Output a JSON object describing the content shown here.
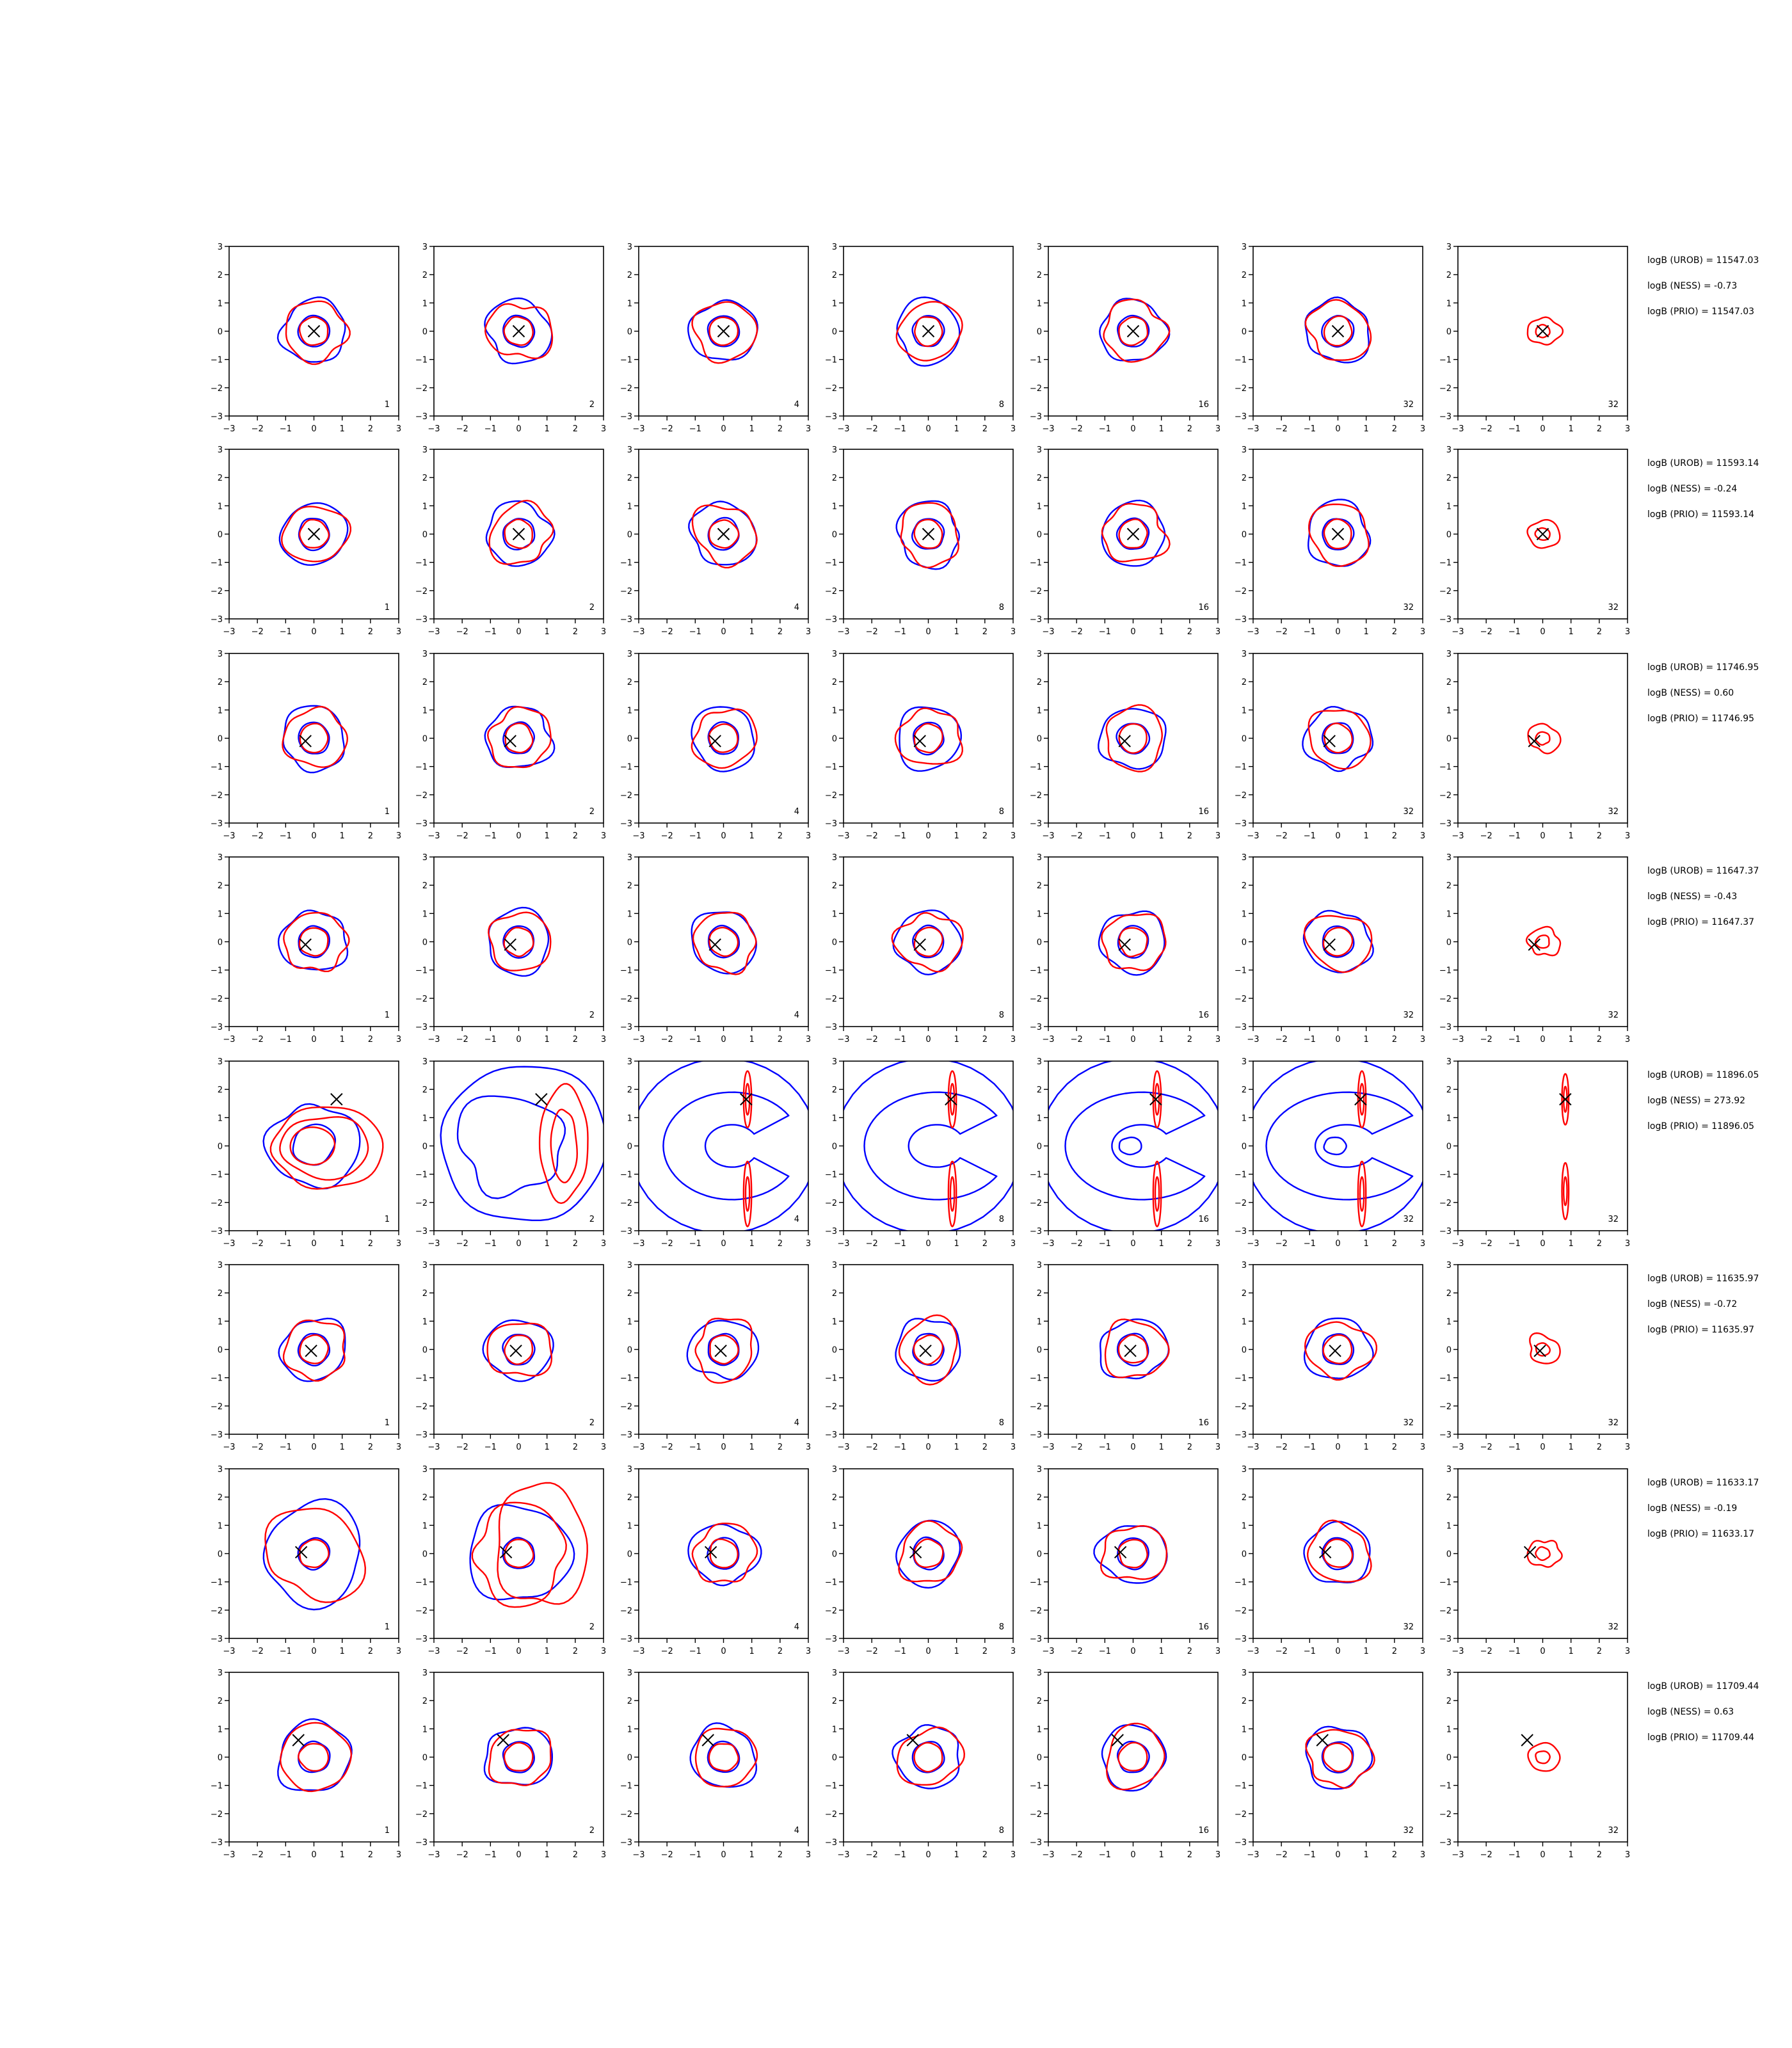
{
  "figure": {
    "n_rows": 8,
    "n_cols": 7,
    "background": "#ffffff",
    "colors": {
      "blue_contour": "#0000ff",
      "red_contour": "#ff0000",
      "marker": "#000000",
      "axes": "#000000"
    }
  },
  "chart_data": {
    "type": "contour",
    "xlim": [
      -3,
      3
    ],
    "ylim": [
      -3,
      3
    ],
    "xticks": [
      "−3",
      "−2",
      "−1",
      "0",
      "1",
      "2",
      "3"
    ],
    "yticks": [
      "3",
      "2",
      "1",
      "0",
      "−1",
      "−2",
      "−3"
    ],
    "panel_labels": [
      "1",
      "2",
      "4",
      "8",
      "16",
      "32",
      "32"
    ],
    "rows": [
      {
        "marker": [
          0.0,
          0.0
        ],
        "stats": [
          "logB (UROB) = 11547.03",
          "logB (NESS) = -0.73",
          "logB (PRIO) = 11547.03"
        ]
      },
      {
        "marker": [
          0.0,
          0.0
        ],
        "stats": [
          "logB (UROB) = 11593.14",
          "logB (NESS) = -0.24",
          "logB (PRIO) = 11593.14"
        ]
      },
      {
        "marker": [
          -0.3,
          -0.1
        ],
        "stats": [
          "logB (UROB) = 11746.95",
          "logB (NESS) = 0.60",
          "logB (PRIO) = 11746.95"
        ]
      },
      {
        "marker": [
          -0.3,
          -0.1
        ],
        "stats": [
          "logB (UROB) = 11647.37",
          "logB (NESS) = -0.43",
          "logB (PRIO) = 11647.37"
        ]
      },
      {
        "marker": [
          0.8,
          1.65
        ],
        "stats": [
          "logB (UROB) = 11896.05",
          "logB (NESS) = 273.92",
          "logB (PRIO) = 11896.05"
        ]
      },
      {
        "marker": [
          -0.1,
          -0.05
        ],
        "stats": [
          "logB (UROB) = 11635.97",
          "logB (NESS) = -0.72",
          "logB (PRIO) = 11635.97"
        ]
      },
      {
        "marker": [
          -0.45,
          0.05
        ],
        "stats": [
          "logB (UROB) = 11633.17",
          "logB (NESS) = -0.19",
          "logB (PRIO) = 11633.17"
        ]
      },
      {
        "marker": [
          -0.55,
          0.6
        ],
        "stats": [
          "logB (UROB) = 11709.44",
          "logB (NESS) = 0.63",
          "logB (PRIO) = 11709.44"
        ]
      }
    ]
  }
}
